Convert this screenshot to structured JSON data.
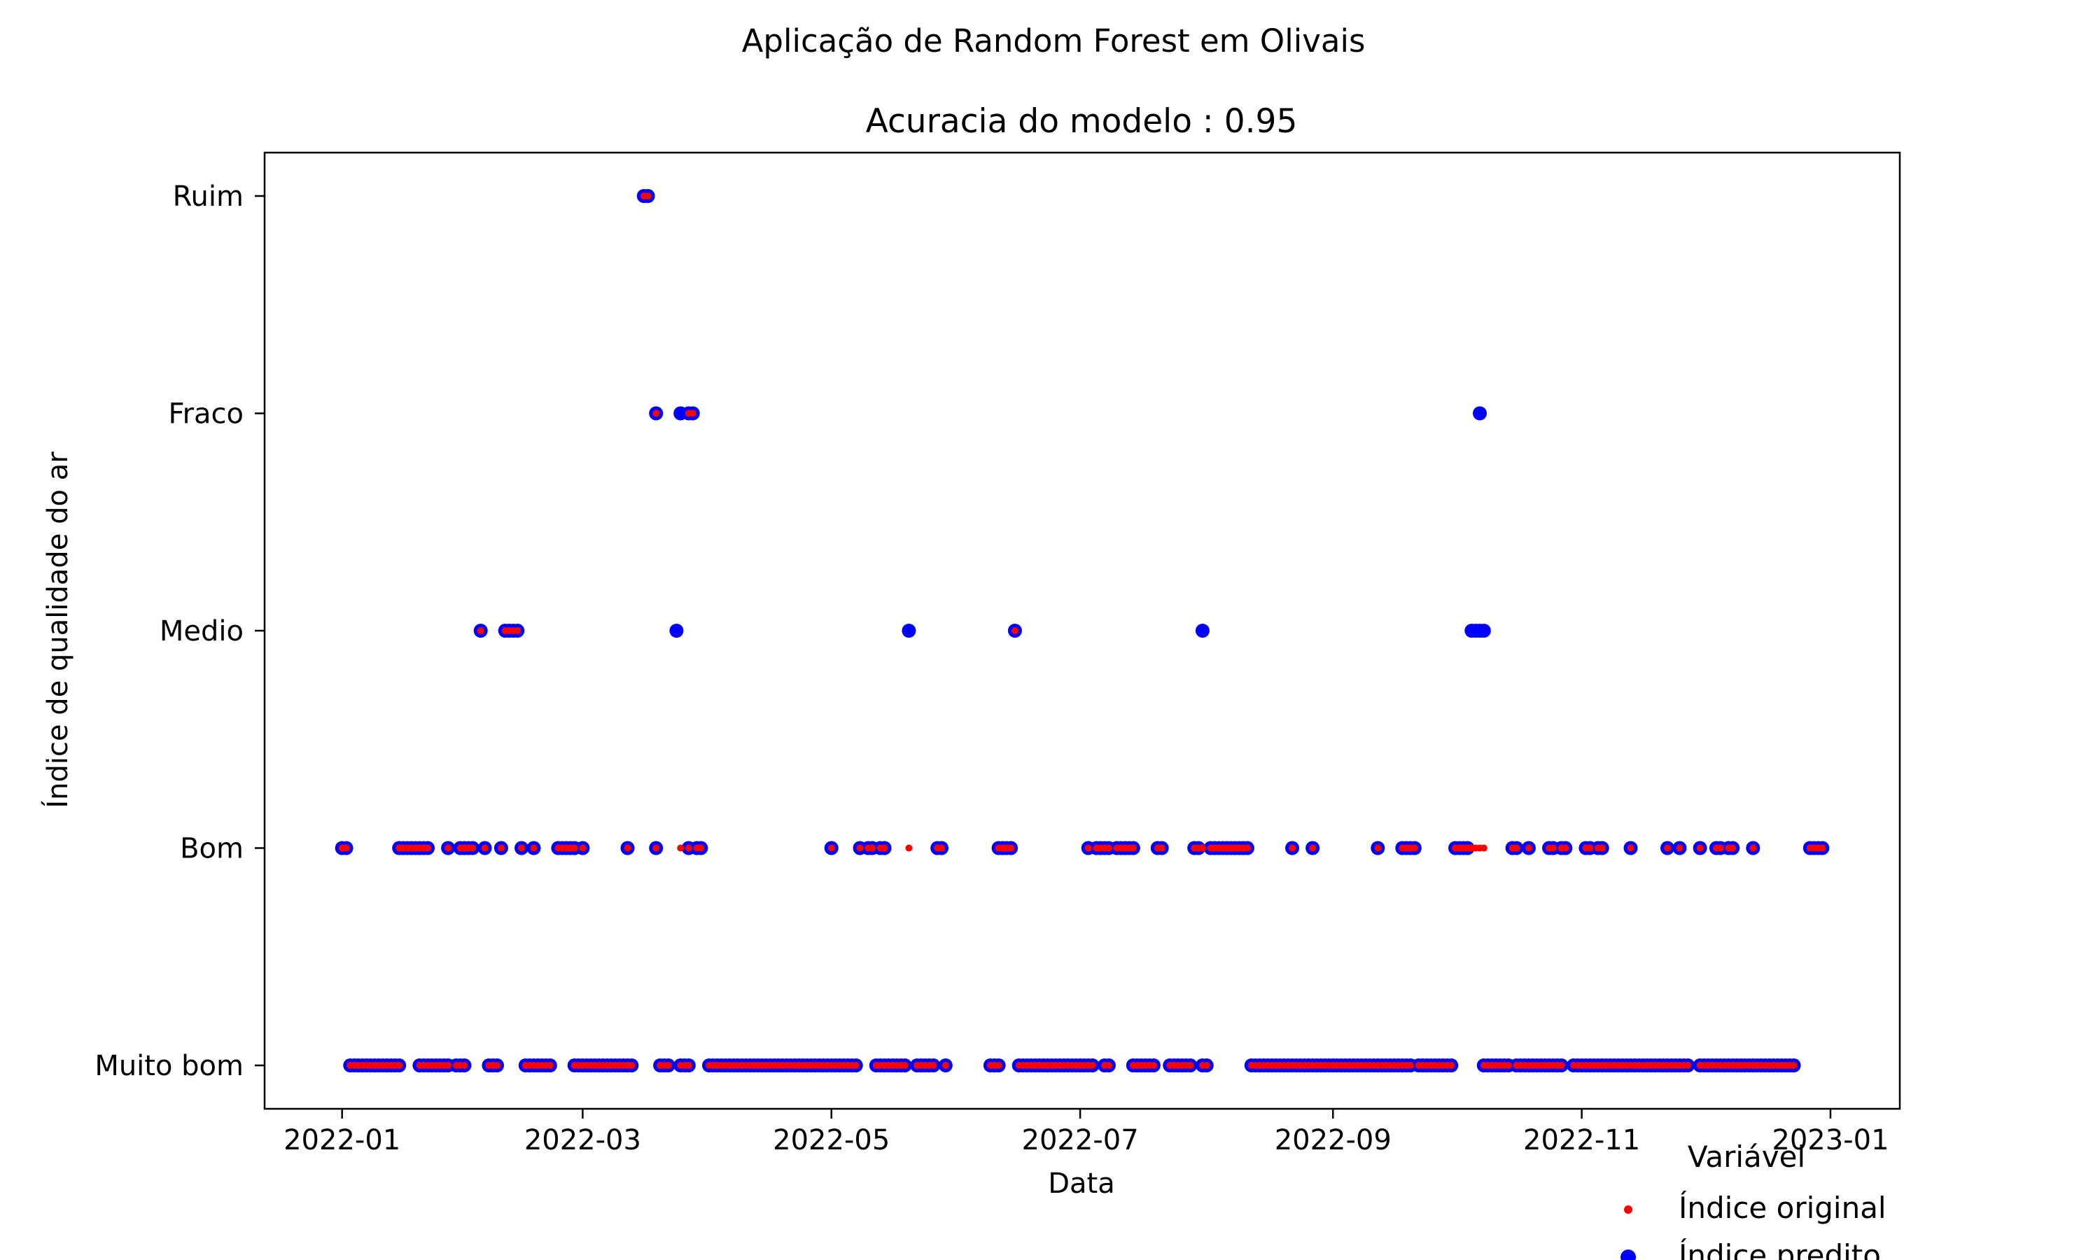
{
  "chart_data": {
    "type": "scatter",
    "suptitle": "Aplicação de Random Forest em Olivais",
    "title": "Acuracia do modelo : 0.95",
    "xlabel": "Data",
    "ylabel": "Índice de qualidade do ar",
    "x_ticks": [
      "2022-01",
      "2022-03",
      "2022-05",
      "2022-07",
      "2022-09",
      "2022-11",
      "2023-01"
    ],
    "x_tick_dates": [
      "2022-01-01",
      "2022-03-01",
      "2022-05-01",
      "2022-07-01",
      "2022-09-01",
      "2022-11-01",
      "2023-01-01"
    ],
    "xlim": [
      "2021-12-13",
      "2023-01-18"
    ],
    "y_categories": [
      "Muito bom",
      "Bom",
      "Medio",
      "Fraco",
      "Ruim"
    ],
    "grid": false,
    "legend": {
      "title": "Variável",
      "placement": "bottom-right, below axes",
      "entries": [
        "Índice  original",
        "Índice predito"
      ]
    },
    "colors": {
      "original": "#ff0000",
      "predito": "#0000ff"
    },
    "series": [
      {
        "name": "Índice  original",
        "points": [
          [
            "2022-03-16",
            "Ruim"
          ],
          [
            "2022-03-17",
            "Ruim"
          ],
          [
            "2022-03-19",
            "Fraco"
          ],
          [
            "2022-03-27",
            "Fraco"
          ],
          [
            "2022-03-28",
            "Fraco"
          ],
          [
            "2022-02-04",
            "Medio"
          ],
          [
            "2022-02-10",
            "Medio"
          ],
          [
            "2022-02-11",
            "Medio"
          ],
          [
            "2022-02-12",
            "Medio"
          ],
          [
            "2022-02-13",
            "Medio"
          ],
          [
            "2022-06-15",
            "Medio"
          ],
          [
            "2022-01-01",
            "Bom"
          ],
          [
            "2022-01-02",
            "Bom"
          ],
          [
            "2022-01-15",
            "Bom"
          ],
          [
            "2022-01-16",
            "Bom"
          ],
          [
            "2022-01-17",
            "Bom"
          ],
          [
            "2022-01-18",
            "Bom"
          ],
          [
            "2022-01-19",
            "Bom"
          ],
          [
            "2022-01-20",
            "Bom"
          ],
          [
            "2022-01-21",
            "Bom"
          ],
          [
            "2022-01-22",
            "Bom"
          ],
          [
            "2022-01-27",
            "Bom"
          ],
          [
            "2022-01-30",
            "Bom"
          ],
          [
            "2022-01-31",
            "Bom"
          ],
          [
            "2022-02-01",
            "Bom"
          ],
          [
            "2022-02-02",
            "Bom"
          ],
          [
            "2022-02-05",
            "Bom"
          ],
          [
            "2022-02-09",
            "Bom"
          ],
          [
            "2022-02-14",
            "Bom"
          ],
          [
            "2022-02-17",
            "Bom"
          ],
          [
            "2022-02-23",
            "Bom"
          ],
          [
            "2022-02-24",
            "Bom"
          ],
          [
            "2022-02-25",
            "Bom"
          ],
          [
            "2022-02-26",
            "Bom"
          ],
          [
            "2022-02-27",
            "Bom"
          ],
          [
            "2022-03-01",
            "Bom"
          ],
          [
            "2022-03-12",
            "Bom"
          ],
          [
            "2022-03-19",
            "Bom"
          ],
          [
            "2022-03-25",
            "Bom"
          ],
          [
            "2022-03-27",
            "Bom"
          ],
          [
            "2022-03-29",
            "Bom"
          ],
          [
            "2022-03-30",
            "Bom"
          ],
          [
            "2022-05-01",
            "Bom"
          ],
          [
            "2022-05-08",
            "Bom"
          ],
          [
            "2022-05-10",
            "Bom"
          ],
          [
            "2022-05-11",
            "Bom"
          ],
          [
            "2022-05-13",
            "Bom"
          ],
          [
            "2022-05-14",
            "Bom"
          ],
          [
            "2022-05-20",
            "Bom"
          ],
          [
            "2022-05-27",
            "Bom"
          ],
          [
            "2022-05-28",
            "Bom"
          ],
          [
            "2022-06-11",
            "Bom"
          ],
          [
            "2022-06-12",
            "Bom"
          ],
          [
            "2022-06-13",
            "Bom"
          ],
          [
            "2022-06-14",
            "Bom"
          ],
          [
            "2022-07-03",
            "Bom"
          ],
          [
            "2022-07-05",
            "Bom"
          ],
          [
            "2022-07-06",
            "Bom"
          ],
          [
            "2022-07-07",
            "Bom"
          ],
          [
            "2022-07-08",
            "Bom"
          ],
          [
            "2022-07-10",
            "Bom"
          ],
          [
            "2022-07-11",
            "Bom"
          ],
          [
            "2022-07-12",
            "Bom"
          ],
          [
            "2022-07-13",
            "Bom"
          ],
          [
            "2022-07-14",
            "Bom"
          ],
          [
            "2022-07-20",
            "Bom"
          ],
          [
            "2022-07-21",
            "Bom"
          ],
          [
            "2022-07-29",
            "Bom"
          ],
          [
            "2022-07-30",
            "Bom"
          ],
          [
            "2022-07-31",
            "Bom"
          ],
          [
            "2022-08-02",
            "Bom"
          ],
          [
            "2022-08-03",
            "Bom"
          ],
          [
            "2022-08-04",
            "Bom"
          ],
          [
            "2022-08-05",
            "Bom"
          ],
          [
            "2022-08-06",
            "Bom"
          ],
          [
            "2022-08-07",
            "Bom"
          ],
          [
            "2022-08-08",
            "Bom"
          ],
          [
            "2022-08-09",
            "Bom"
          ],
          [
            "2022-08-10",
            "Bom"
          ],
          [
            "2022-08-11",
            "Bom"
          ],
          [
            "2022-08-22",
            "Bom"
          ],
          [
            "2022-08-27",
            "Bom"
          ],
          [
            "2022-09-12",
            "Bom"
          ],
          [
            "2022-09-18",
            "Bom"
          ],
          [
            "2022-09-19",
            "Bom"
          ],
          [
            "2022-09-20",
            "Bom"
          ],
          [
            "2022-09-21",
            "Bom"
          ],
          [
            "2022-10-01",
            "Bom"
          ],
          [
            "2022-10-02",
            "Bom"
          ],
          [
            "2022-10-03",
            "Bom"
          ],
          [
            "2022-10-04",
            "Bom"
          ],
          [
            "2022-10-05",
            "Bom"
          ],
          [
            "2022-10-06",
            "Bom"
          ],
          [
            "2022-10-07",
            "Bom"
          ],
          [
            "2022-10-08",
            "Bom"
          ],
          [
            "2022-10-15",
            "Bom"
          ],
          [
            "2022-10-16",
            "Bom"
          ],
          [
            "2022-10-19",
            "Bom"
          ],
          [
            "2022-10-24",
            "Bom"
          ],
          [
            "2022-10-25",
            "Bom"
          ],
          [
            "2022-10-27",
            "Bom"
          ],
          [
            "2022-10-28",
            "Bom"
          ],
          [
            "2022-11-02",
            "Bom"
          ],
          [
            "2022-11-03",
            "Bom"
          ],
          [
            "2022-11-05",
            "Bom"
          ],
          [
            "2022-11-06",
            "Bom"
          ],
          [
            "2022-11-13",
            "Bom"
          ],
          [
            "2022-11-22",
            "Bom"
          ],
          [
            "2022-11-25",
            "Bom"
          ],
          [
            "2022-11-30",
            "Bom"
          ],
          [
            "2022-12-04",
            "Bom"
          ],
          [
            "2022-12-05",
            "Bom"
          ],
          [
            "2022-12-07",
            "Bom"
          ],
          [
            "2022-12-08",
            "Bom"
          ],
          [
            "2022-12-13",
            "Bom"
          ],
          [
            "2022-12-27",
            "Bom"
          ],
          [
            "2022-12-28",
            "Bom"
          ],
          [
            "2022-12-29",
            "Bom"
          ],
          [
            "2022-12-30",
            "Bom"
          ]
        ]
      },
      {
        "name": "Índice predito",
        "points": [
          [
            "2022-03-16",
            "Ruim"
          ],
          [
            "2022-03-17",
            "Ruim"
          ],
          [
            "2022-03-19",
            "Fraco"
          ],
          [
            "2022-03-25",
            "Fraco"
          ],
          [
            "2022-03-27",
            "Fraco"
          ],
          [
            "2022-03-28",
            "Fraco"
          ],
          [
            "2022-10-07",
            "Fraco"
          ],
          [
            "2022-02-04",
            "Medio"
          ],
          [
            "2022-02-10",
            "Medio"
          ],
          [
            "2022-02-11",
            "Medio"
          ],
          [
            "2022-02-12",
            "Medio"
          ],
          [
            "2022-02-13",
            "Medio"
          ],
          [
            "2022-03-24",
            "Medio"
          ],
          [
            "2022-05-20",
            "Medio"
          ],
          [
            "2022-06-15",
            "Medio"
          ],
          [
            "2022-07-31",
            "Medio"
          ],
          [
            "2022-10-05",
            "Medio"
          ],
          [
            "2022-10-06",
            "Medio"
          ],
          [
            "2022-10-07",
            "Medio"
          ],
          [
            "2022-10-08",
            "Medio"
          ],
          [
            "2022-01-01",
            "Bom"
          ],
          [
            "2022-01-02",
            "Bom"
          ],
          [
            "2022-01-15",
            "Bom"
          ],
          [
            "2022-01-16",
            "Bom"
          ],
          [
            "2022-01-17",
            "Bom"
          ],
          [
            "2022-01-18",
            "Bom"
          ],
          [
            "2022-01-19",
            "Bom"
          ],
          [
            "2022-01-20",
            "Bom"
          ],
          [
            "2022-01-21",
            "Bom"
          ],
          [
            "2022-01-22",
            "Bom"
          ],
          [
            "2022-01-27",
            "Bom"
          ],
          [
            "2022-01-30",
            "Bom"
          ],
          [
            "2022-01-31",
            "Bom"
          ],
          [
            "2022-02-01",
            "Bom"
          ],
          [
            "2022-02-02",
            "Bom"
          ],
          [
            "2022-02-05",
            "Bom"
          ],
          [
            "2022-02-09",
            "Bom"
          ],
          [
            "2022-02-14",
            "Bom"
          ],
          [
            "2022-02-17",
            "Bom"
          ],
          [
            "2022-02-23",
            "Bom"
          ],
          [
            "2022-02-24",
            "Bom"
          ],
          [
            "2022-02-25",
            "Bom"
          ],
          [
            "2022-02-26",
            "Bom"
          ],
          [
            "2022-02-27",
            "Bom"
          ],
          [
            "2022-03-01",
            "Bom"
          ],
          [
            "2022-03-12",
            "Bom"
          ],
          [
            "2022-03-19",
            "Bom"
          ],
          [
            "2022-03-27",
            "Bom"
          ],
          [
            "2022-03-29",
            "Bom"
          ],
          [
            "2022-03-30",
            "Bom"
          ],
          [
            "2022-05-01",
            "Bom"
          ],
          [
            "2022-05-08",
            "Bom"
          ],
          [
            "2022-05-10",
            "Bom"
          ],
          [
            "2022-05-11",
            "Bom"
          ],
          [
            "2022-05-13",
            "Bom"
          ],
          [
            "2022-05-14",
            "Bom"
          ],
          [
            "2022-05-27",
            "Bom"
          ],
          [
            "2022-05-28",
            "Bom"
          ],
          [
            "2022-06-11",
            "Bom"
          ],
          [
            "2022-06-12",
            "Bom"
          ],
          [
            "2022-06-13",
            "Bom"
          ],
          [
            "2022-06-14",
            "Bom"
          ],
          [
            "2022-07-03",
            "Bom"
          ],
          [
            "2022-07-05",
            "Bom"
          ],
          [
            "2022-07-06",
            "Bom"
          ],
          [
            "2022-07-07",
            "Bom"
          ],
          [
            "2022-07-08",
            "Bom"
          ],
          [
            "2022-07-10",
            "Bom"
          ],
          [
            "2022-07-11",
            "Bom"
          ],
          [
            "2022-07-12",
            "Bom"
          ],
          [
            "2022-07-13",
            "Bom"
          ],
          [
            "2022-07-14",
            "Bom"
          ],
          [
            "2022-07-20",
            "Bom"
          ],
          [
            "2022-07-21",
            "Bom"
          ],
          [
            "2022-07-29",
            "Bom"
          ],
          [
            "2022-07-30",
            "Bom"
          ],
          [
            "2022-08-02",
            "Bom"
          ],
          [
            "2022-08-03",
            "Bom"
          ],
          [
            "2022-08-04",
            "Bom"
          ],
          [
            "2022-08-05",
            "Bom"
          ],
          [
            "2022-08-06",
            "Bom"
          ],
          [
            "2022-08-07",
            "Bom"
          ],
          [
            "2022-08-08",
            "Bom"
          ],
          [
            "2022-08-09",
            "Bom"
          ],
          [
            "2022-08-10",
            "Bom"
          ],
          [
            "2022-08-11",
            "Bom"
          ],
          [
            "2022-08-22",
            "Bom"
          ],
          [
            "2022-08-27",
            "Bom"
          ],
          [
            "2022-09-12",
            "Bom"
          ],
          [
            "2022-09-18",
            "Bom"
          ],
          [
            "2022-09-19",
            "Bom"
          ],
          [
            "2022-09-20",
            "Bom"
          ],
          [
            "2022-09-21",
            "Bom"
          ],
          [
            "2022-10-01",
            "Bom"
          ],
          [
            "2022-10-02",
            "Bom"
          ],
          [
            "2022-10-03",
            "Bom"
          ],
          [
            "2022-10-04",
            "Bom"
          ],
          [
            "2022-10-15",
            "Bom"
          ],
          [
            "2022-10-16",
            "Bom"
          ],
          [
            "2022-10-19",
            "Bom"
          ],
          [
            "2022-10-24",
            "Bom"
          ],
          [
            "2022-10-25",
            "Bom"
          ],
          [
            "2022-10-27",
            "Bom"
          ],
          [
            "2022-10-28",
            "Bom"
          ],
          [
            "2022-11-02",
            "Bom"
          ],
          [
            "2022-11-03",
            "Bom"
          ],
          [
            "2022-11-05",
            "Bom"
          ],
          [
            "2022-11-06",
            "Bom"
          ],
          [
            "2022-11-13",
            "Bom"
          ],
          [
            "2022-11-22",
            "Bom"
          ],
          [
            "2022-11-25",
            "Bom"
          ],
          [
            "2022-11-30",
            "Bom"
          ],
          [
            "2022-12-04",
            "Bom"
          ],
          [
            "2022-12-05",
            "Bom"
          ],
          [
            "2022-12-07",
            "Bom"
          ],
          [
            "2022-12-08",
            "Bom"
          ],
          [
            "2022-12-13",
            "Bom"
          ],
          [
            "2022-12-27",
            "Bom"
          ],
          [
            "2022-12-28",
            "Bom"
          ],
          [
            "2022-12-29",
            "Bom"
          ],
          [
            "2022-12-30",
            "Bom"
          ]
        ]
      }
    ],
    "muito_bom_ranges": [
      [
        "2022-01-03",
        "2022-01-15"
      ],
      [
        "2022-01-20",
        "2022-01-27"
      ],
      [
        "2022-01-29",
        "2022-01-31"
      ],
      [
        "2022-02-06",
        "2022-02-08"
      ],
      [
        "2022-02-15",
        "2022-02-21"
      ],
      [
        "2022-02-27",
        "2022-03-13"
      ],
      [
        "2022-03-20",
        "2022-03-22"
      ],
      [
        "2022-03-25",
        "2022-03-27"
      ],
      [
        "2022-04-01",
        "2022-05-07"
      ],
      [
        "2022-05-12",
        "2022-05-19"
      ],
      [
        "2022-05-22",
        "2022-05-26"
      ],
      [
        "2022-05-29",
        "2022-05-29"
      ],
      [
        "2022-06-09",
        "2022-06-11"
      ],
      [
        "2022-06-16",
        "2022-07-04"
      ],
      [
        "2022-07-07",
        "2022-07-08"
      ],
      [
        "2022-07-14",
        "2022-07-19"
      ],
      [
        "2022-07-23",
        "2022-07-28"
      ],
      [
        "2022-07-31",
        "2022-08-01"
      ],
      [
        "2022-08-12",
        "2022-09-20"
      ],
      [
        "2022-09-22",
        "2022-09-30"
      ],
      [
        "2022-10-08",
        "2022-10-14"
      ],
      [
        "2022-10-16",
        "2022-10-27"
      ],
      [
        "2022-10-30",
        "2022-11-27"
      ],
      [
        "2022-11-30",
        "2022-12-23"
      ]
    ]
  }
}
